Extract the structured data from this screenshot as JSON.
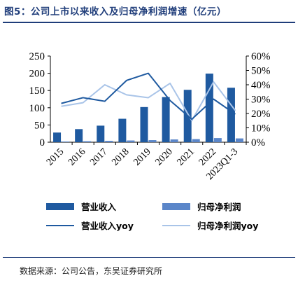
{
  "figure": {
    "title": "图5：公司上市以来收入及归母净利润增速（亿元）",
    "source": "数据来源：公司公告，东吴证券研究所"
  },
  "chart_data": {
    "type": "bar",
    "categories": [
      "2015",
      "2016",
      "2017",
      "2018",
      "2019",
      "2020",
      "2021",
      "2022",
      "2023Q1-3"
    ],
    "series": [
      {
        "name": "营业收入",
        "type": "bar",
        "axis": "left",
        "color": "#1f5aa0",
        "values": [
          28,
          38,
          48,
          68,
          102,
          131,
          152,
          199,
          158
        ]
      },
      {
        "name": "归母净利润",
        "type": "bar",
        "axis": "left",
        "color": "#5b86c9",
        "values": [
          2,
          3,
          4,
          5,
          6,
          8,
          9,
          12,
          11
        ]
      },
      {
        "name": "营业收入yoy",
        "type": "line",
        "axis": "right",
        "color": "#1f5aa0",
        "values": [
          0.27,
          0.31,
          0.285,
          0.43,
          0.48,
          0.29,
          0.16,
          0.3,
          0.195
        ]
      },
      {
        "name": "归母净利润yoy",
        "type": "line",
        "axis": "right",
        "color": "#a9c4e8",
        "values": [
          0.25,
          0.275,
          0.4,
          0.33,
          0.31,
          0.41,
          0.15,
          0.42,
          0.22
        ]
      }
    ],
    "ylim_left": [
      0,
      250
    ],
    "yticks_left": [
      "0",
      "50",
      "100",
      "150",
      "200",
      "250"
    ],
    "ylim_right": [
      0,
      0.6
    ],
    "yticks_right": [
      "0%",
      "10%",
      "20%",
      "30%",
      "40%",
      "50%",
      "60%"
    ],
    "grid": false,
    "legend_position": "bottom"
  }
}
